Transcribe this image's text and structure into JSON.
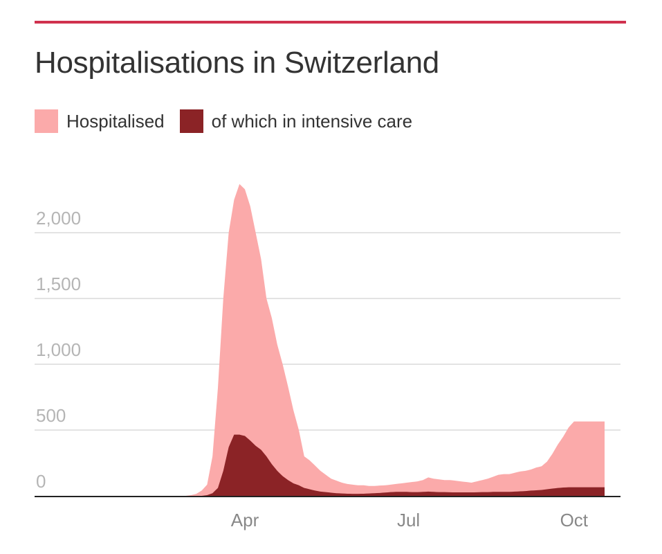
{
  "chart_data": {
    "type": "area",
    "title": "Hospitalisations in Switzerland",
    "xlabel": "",
    "ylabel": "",
    "ylim": [
      0,
      2000
    ],
    "yticks": [
      0,
      500,
      1000,
      1500,
      2000
    ],
    "ytick_labels": [
      "0",
      "500",
      "1,000",
      "1,500",
      "2,000"
    ],
    "xtick_labels": [
      "Apr",
      "Jul",
      "Oct"
    ],
    "xtick_days": [
      0,
      91,
      183
    ],
    "x_unit": "days relative to 1 April",
    "grid": true,
    "legend": "top-left",
    "colors": {
      "accent": "#d0314e",
      "hospitalised": "#fbaaaa",
      "icu": "#8b2326",
      "grid": "#e3e3e3",
      "axis": "#222222"
    },
    "x": [
      -33,
      -30,
      -27,
      -24,
      -21,
      -18,
      -15,
      -12,
      -9,
      -6,
      -3,
      0,
      3,
      6,
      9,
      12,
      15,
      18,
      21,
      24,
      27,
      30,
      33,
      36,
      39,
      42,
      45,
      48,
      51,
      54,
      57,
      60,
      63,
      66,
      69,
      72,
      75,
      78,
      81,
      84,
      87,
      90,
      93,
      96,
      99,
      102,
      105,
      108,
      111,
      114,
      117,
      120,
      123,
      126,
      129,
      132,
      135,
      138,
      141,
      144,
      147,
      150,
      153,
      156,
      159,
      162,
      165,
      168,
      171,
      174,
      177,
      180,
      183,
      186,
      189,
      192,
      195,
      198,
      200
    ],
    "series": [
      {
        "name": "Hospitalised",
        "values": [
          0,
          5,
          15,
          40,
          85,
          300,
          820,
          1500,
          2000,
          2250,
          2370,
          2330,
          2200,
          2000,
          1800,
          1500,
          1350,
          1150,
          1000,
          830,
          650,
          500,
          300,
          270,
          230,
          190,
          160,
          130,
          115,
          100,
          90,
          85,
          80,
          80,
          75,
          75,
          78,
          80,
          85,
          90,
          95,
          100,
          105,
          110,
          120,
          140,
          130,
          125,
          120,
          120,
          115,
          110,
          105,
          100,
          110,
          120,
          130,
          145,
          160,
          165,
          165,
          175,
          185,
          190,
          200,
          215,
          225,
          260,
          320,
          390,
          450,
          520,
          565,
          565,
          565,
          565,
          565,
          565,
          565
        ]
      },
      {
        "name": "of which in intensive care",
        "values": [
          0,
          0,
          0,
          0,
          5,
          20,
          60,
          190,
          370,
          465,
          465,
          455,
          420,
          380,
          350,
          300,
          240,
          190,
          150,
          120,
          95,
          80,
          60,
          50,
          40,
          32,
          28,
          24,
          20,
          18,
          16,
          15,
          15,
          16,
          18,
          20,
          22,
          25,
          28,
          30,
          30,
          30,
          28,
          28,
          30,
          32,
          30,
          28,
          28,
          27,
          26,
          26,
          26,
          26,
          27,
          28,
          28,
          30,
          30,
          30,
          30,
          32,
          34,
          36,
          40,
          42,
          45,
          50,
          55,
          60,
          63,
          65,
          65,
          65,
          65,
          65,
          65,
          65,
          65
        ]
      }
    ]
  }
}
